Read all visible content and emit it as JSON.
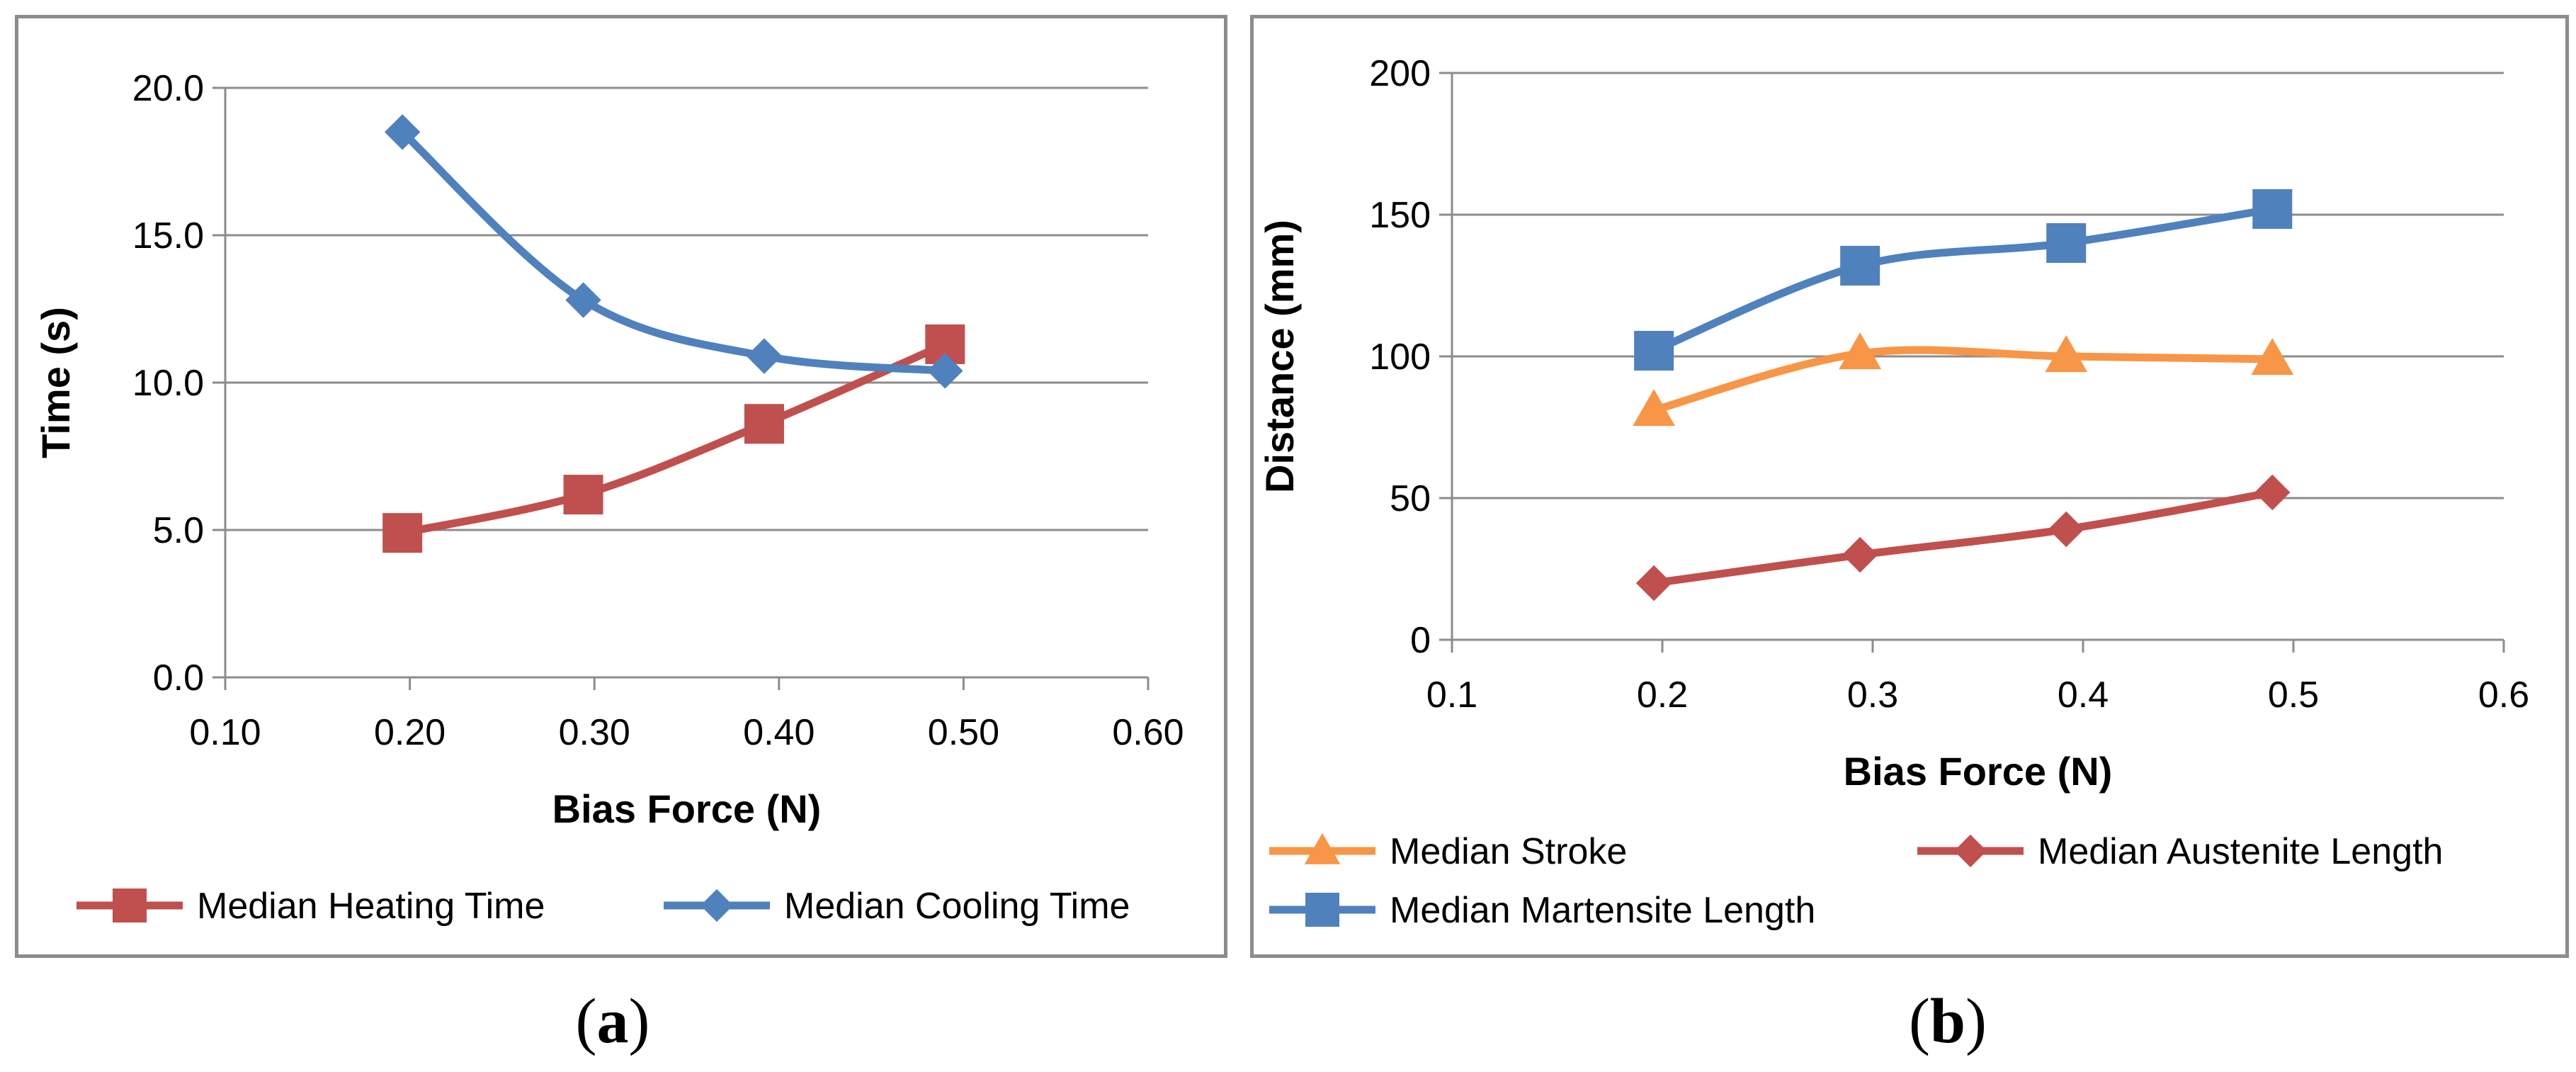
{
  "chart_data": [
    {
      "type": "line",
      "id": "a",
      "xlabel": "Bias Force (N)",
      "ylabel": "Time (s)",
      "xlim": [
        0.1,
        0.6
      ],
      "ylim": [
        0.0,
        20.0
      ],
      "x_ticks": [
        "0.10",
        "0.20",
        "0.30",
        "0.40",
        "0.50",
        "0.60"
      ],
      "y_ticks": [
        "0.0",
        "5.0",
        "10.0",
        "15.0",
        "20.0"
      ],
      "grid": true,
      "legend_position": "bottom",
      "series": [
        {
          "name": "Median Heating Time",
          "color": "#c0504d",
          "marker": "square",
          "x": [
            0.196,
            0.294,
            0.392,
            0.49
          ],
          "values": [
            4.9,
            6.2,
            8.6,
            11.3
          ]
        },
        {
          "name": "Median Cooling Time",
          "color": "#4f81bd",
          "marker": "diamond",
          "x": [
            0.196,
            0.294,
            0.392,
            0.49
          ],
          "values": [
            18.5,
            12.8,
            10.9,
            10.4
          ]
        }
      ]
    },
    {
      "type": "line",
      "id": "b",
      "xlabel": "Bias Force (N)",
      "ylabel": "Distance (mm)",
      "xlim": [
        0.1,
        0.6
      ],
      "ylim": [
        0,
        200
      ],
      "x_ticks": [
        "0.1",
        "0.2",
        "0.3",
        "0.4",
        "0.5",
        "0.6"
      ],
      "y_ticks": [
        "0",
        "50",
        "100",
        "150",
        "200"
      ],
      "grid": true,
      "legend_position": "bottom",
      "series": [
        {
          "name": "Median Stroke",
          "color": "#f79646",
          "marker": "triangle",
          "x": [
            0.196,
            0.294,
            0.392,
            0.49
          ],
          "values": [
            81,
            101,
            100,
            99
          ]
        },
        {
          "name": "Median Austenite Length",
          "color": "#c0504d",
          "marker": "diamond",
          "x": [
            0.196,
            0.294,
            0.392,
            0.49
          ],
          "values": [
            20,
            30,
            39,
            52
          ]
        },
        {
          "name": "Median Martensite Length",
          "color": "#4f81bd",
          "marker": "square",
          "x": [
            0.196,
            0.294,
            0.392,
            0.49
          ],
          "values": [
            102,
            132,
            140,
            152
          ]
        }
      ]
    }
  ],
  "captions": {
    "a": "(a)",
    "b": "(b)"
  }
}
